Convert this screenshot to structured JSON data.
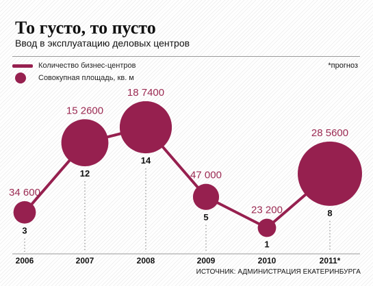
{
  "title": "То густо, то пусто",
  "subtitle": "Ввод в эксплуатацию деловых центров",
  "legend": {
    "line_label": "Количество бизнес-центров",
    "bubble_label": "Совокупная площадь, кв. м"
  },
  "note": "*прогноз",
  "source": "ИСТОЧНИК: АДМИНИСТРАЦИЯ ЕКАТЕРИНБУРГА",
  "colors": {
    "accent": "#96204f",
    "area_label": "#9b2a52",
    "text": "#111111"
  },
  "chart_data": {
    "type": "line",
    "categories": [
      "2006",
      "2007",
      "2008",
      "2009",
      "2010",
      "2011*"
    ],
    "series": [
      {
        "name": "Количество бизнес-центров",
        "values": [
          3,
          12,
          14,
          5,
          1,
          8
        ],
        "labels": [
          "3",
          "12",
          "14",
          "5",
          "1",
          "8"
        ]
      },
      {
        "name": "Совокупная площадь, кв. м",
        "values": [
          34600,
          152600,
          187400,
          47000,
          23200,
          285600
        ],
        "labels": [
          "34 600",
          "15 2600",
          "18 7400",
          "47 000",
          "23 200",
          "28 5600"
        ]
      }
    ],
    "ylim": [
      0,
      15
    ]
  }
}
